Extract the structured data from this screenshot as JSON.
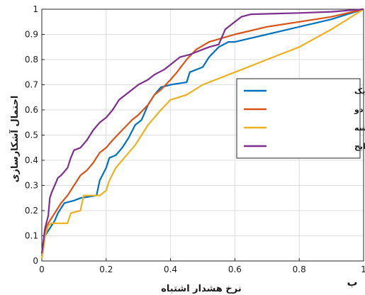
{
  "panel_label": "ب",
  "chart_data": {
    "type": "line",
    "xlabel": "نرخ هشدار اشتباه",
    "ylabel": "احتمال آشکارسازی",
    "xlim": [
      0,
      1
    ],
    "ylim": [
      0,
      1
    ],
    "xticks": [
      "0",
      "0.2",
      "0.4",
      "0.6",
      "0.8",
      "1"
    ],
    "yticks": [
      "0",
      "0.1",
      "0.2",
      "0.3",
      "0.4",
      "0.5",
      "0.6",
      "0.7",
      "0.8",
      "0.9",
      "1"
    ],
    "grid": true,
    "legend_position": "right",
    "series": [
      {
        "name": "نمونه طیفی-زمانی یک",
        "color": "#0072BD",
        "points": [
          [
            0,
            0.02
          ],
          [
            0.005,
            0.05
          ],
          [
            0.01,
            0.1
          ],
          [
            0.02,
            0.12
          ],
          [
            0.03,
            0.14
          ],
          [
            0.04,
            0.16
          ],
          [
            0.05,
            0.19
          ],
          [
            0.06,
            0.21
          ],
          [
            0.07,
            0.23
          ],
          [
            0.1,
            0.24
          ],
          [
            0.12,
            0.25
          ],
          [
            0.17,
            0.26
          ],
          [
            0.18,
            0.32
          ],
          [
            0.2,
            0.37
          ],
          [
            0.21,
            0.41
          ],
          [
            0.23,
            0.42
          ],
          [
            0.25,
            0.45
          ],
          [
            0.27,
            0.49
          ],
          [
            0.29,
            0.54
          ],
          [
            0.31,
            0.56
          ],
          [
            0.33,
            0.62
          ],
          [
            0.35,
            0.66
          ],
          [
            0.37,
            0.69
          ],
          [
            0.4,
            0.7
          ],
          [
            0.45,
            0.71
          ],
          [
            0.46,
            0.75
          ],
          [
            0.5,
            0.77
          ],
          [
            0.52,
            0.81
          ],
          [
            0.55,
            0.85
          ],
          [
            0.58,
            0.87
          ],
          [
            0.6,
            0.87
          ],
          [
            0.7,
            0.9
          ],
          [
            0.8,
            0.93
          ],
          [
            0.9,
            0.96
          ],
          [
            1,
            1
          ]
        ]
      },
      {
        "name": "نمونه طیفی-زمانی دو",
        "color": "#D95319",
        "points": [
          [
            0,
            0.03
          ],
          [
            0.005,
            0.07
          ],
          [
            0.01,
            0.12
          ],
          [
            0.02,
            0.15
          ],
          [
            0.04,
            0.19
          ],
          [
            0.06,
            0.23
          ],
          [
            0.08,
            0.26
          ],
          [
            0.1,
            0.3
          ],
          [
            0.12,
            0.34
          ],
          [
            0.14,
            0.36
          ],
          [
            0.16,
            0.39
          ],
          [
            0.18,
            0.43
          ],
          [
            0.2,
            0.45
          ],
          [
            0.22,
            0.48
          ],
          [
            0.25,
            0.52
          ],
          [
            0.28,
            0.56
          ],
          [
            0.3,
            0.58
          ],
          [
            0.33,
            0.62
          ],
          [
            0.35,
            0.66
          ],
          [
            0.37,
            0.68
          ],
          [
            0.4,
            0.72
          ],
          [
            0.42,
            0.75
          ],
          [
            0.45,
            0.8
          ],
          [
            0.48,
            0.84
          ],
          [
            0.52,
            0.87
          ],
          [
            0.6,
            0.9
          ],
          [
            0.7,
            0.93
          ],
          [
            0.8,
            0.95
          ],
          [
            0.9,
            0.97
          ],
          [
            1,
            1
          ]
        ]
      },
      {
        "name": "نمونه طیفی-زمانی سه",
        "color": "#EDB120",
        "points": [
          [
            0,
            0.01
          ],
          [
            0.005,
            0.05
          ],
          [
            0.01,
            0.1
          ],
          [
            0.02,
            0.14
          ],
          [
            0.03,
            0.15
          ],
          [
            0.08,
            0.15
          ],
          [
            0.09,
            0.19
          ],
          [
            0.12,
            0.2
          ],
          [
            0.13,
            0.26
          ],
          [
            0.18,
            0.26
          ],
          [
            0.2,
            0.28
          ],
          [
            0.21,
            0.32
          ],
          [
            0.23,
            0.37
          ],
          [
            0.25,
            0.4
          ],
          [
            0.27,
            0.43
          ],
          [
            0.29,
            0.46
          ],
          [
            0.31,
            0.5
          ],
          [
            0.33,
            0.54
          ],
          [
            0.35,
            0.57
          ],
          [
            0.37,
            0.6
          ],
          [
            0.4,
            0.64
          ],
          [
            0.45,
            0.66
          ],
          [
            0.5,
            0.7
          ],
          [
            0.6,
            0.75
          ],
          [
            0.7,
            0.8
          ],
          [
            0.8,
            0.85
          ],
          [
            0.9,
            0.92
          ],
          [
            1,
            1
          ]
        ]
      },
      {
        "name": "میانگین وزندار نتایج",
        "color": "#7E2F8E",
        "points": [
          [
            0,
            0.03
          ],
          [
            0.005,
            0.08
          ],
          [
            0.01,
            0.13
          ],
          [
            0.02,
            0.18
          ],
          [
            0.025,
            0.25
          ],
          [
            0.03,
            0.27
          ],
          [
            0.04,
            0.3
          ],
          [
            0.05,
            0.33
          ],
          [
            0.06,
            0.34
          ],
          [
            0.08,
            0.37
          ],
          [
            0.09,
            0.41
          ],
          [
            0.1,
            0.44
          ],
          [
            0.12,
            0.45
          ],
          [
            0.14,
            0.48
          ],
          [
            0.16,
            0.52
          ],
          [
            0.18,
            0.55
          ],
          [
            0.2,
            0.57
          ],
          [
            0.22,
            0.6
          ],
          [
            0.24,
            0.64
          ],
          [
            0.26,
            0.66
          ],
          [
            0.28,
            0.68
          ],
          [
            0.3,
            0.7
          ],
          [
            0.33,
            0.72
          ],
          [
            0.35,
            0.74
          ],
          [
            0.38,
            0.76
          ],
          [
            0.4,
            0.78
          ],
          [
            0.43,
            0.81
          ],
          [
            0.46,
            0.82
          ],
          [
            0.5,
            0.84
          ],
          [
            0.52,
            0.85
          ],
          [
            0.55,
            0.86
          ],
          [
            0.56,
            0.89
          ],
          [
            0.57,
            0.92
          ],
          [
            0.6,
            0.95
          ],
          [
            0.62,
            0.97
          ],
          [
            0.65,
            0.98
          ],
          [
            0.8,
            0.985
          ],
          [
            0.9,
            0.99
          ],
          [
            1,
            1
          ]
        ]
      }
    ]
  }
}
